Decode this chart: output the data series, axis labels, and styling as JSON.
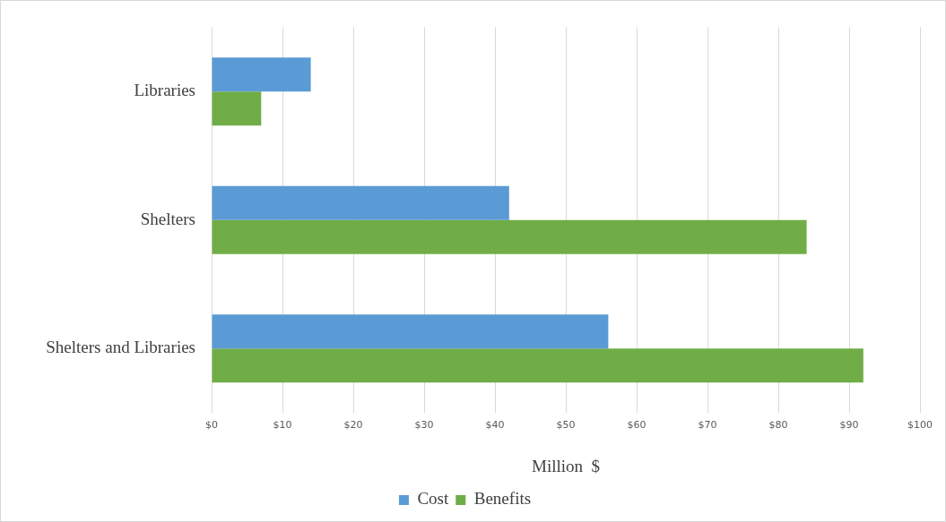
{
  "chart_data": {
    "type": "bar",
    "orientation": "horizontal",
    "xlabel": "Million  $",
    "categories": [
      "Libraries",
      "Shelters",
      "Shelters and Libraries"
    ],
    "series": [
      {
        "name": "Cost",
        "color": "#5b9bd5",
        "values": [
          14,
          42,
          56
        ]
      },
      {
        "name": "Benefits",
        "color": "#70ad47",
        "values": [
          7,
          84,
          92
        ]
      }
    ],
    "xlim": [
      0,
      100
    ],
    "xticks": [
      {
        "value": 0,
        "label": "$0"
      },
      {
        "value": 10,
        "label": "$10"
      },
      {
        "value": 20,
        "label": "$20"
      },
      {
        "value": 30,
        "label": "$30"
      },
      {
        "value": 40,
        "label": "$40"
      },
      {
        "value": 50,
        "label": "$50"
      },
      {
        "value": 60,
        "label": "$60"
      },
      {
        "value": 70,
        "label": "$70"
      },
      {
        "value": 80,
        "label": "$80"
      },
      {
        "value": 90,
        "label": "$90"
      },
      {
        "value": 100,
        "label": "$100"
      }
    ],
    "grid": "x",
    "legend": "bottom"
  }
}
